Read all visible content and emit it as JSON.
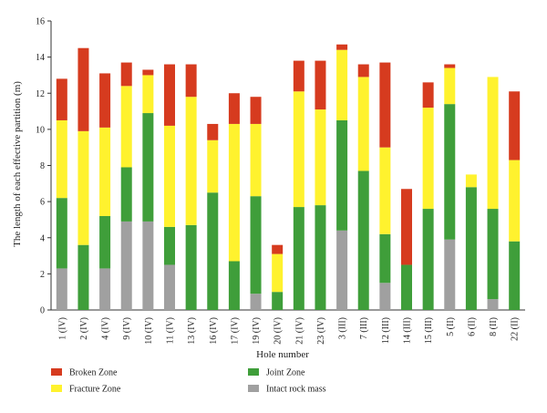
{
  "chart_data": {
    "type": "bar",
    "stacked": true,
    "xlabel": "Hole number",
    "ylabel": "The length of each effective partition (m)",
    "ylim": [
      0,
      16
    ],
    "yticks": [
      0,
      2,
      4,
      6,
      8,
      10,
      12,
      14,
      16
    ],
    "grid": false,
    "legend_position": "bottom",
    "categories": [
      "1 (IV)",
      "2 (IV)",
      "4 (IV)",
      "9 (IV)",
      "10 (IV)",
      "11 (IV)",
      "13 (IV)",
      "16 (IV)",
      "17 (IV)",
      "19 (IV)",
      "20 (IV)",
      "21 (IV)",
      "23 (IV)",
      "3 (III)",
      "7 (III)",
      "12 (III)",
      "14 (III)",
      "15 (III)",
      "5 (II)",
      "6 (II)",
      "8 (II)",
      "22 (II)"
    ],
    "series": [
      {
        "name": "Intact rock mass",
        "color": "#a0a0a0",
        "values": [
          2.3,
          0,
          2.3,
          4.9,
          4.9,
          2.5,
          0,
          0,
          0,
          0.9,
          0,
          0,
          0,
          4.4,
          0,
          1.5,
          0,
          0,
          3.9,
          0,
          0.6,
          0
        ]
      },
      {
        "name": "Joint Zone",
        "color": "#3f9e3a",
        "values": [
          3.9,
          3.6,
          2.9,
          3.0,
          6.0,
          2.1,
          4.7,
          6.5,
          2.7,
          5.4,
          1.0,
          5.7,
          5.8,
          6.1,
          7.7,
          2.7,
          2.5,
          5.6,
          7.5,
          6.8,
          5.0,
          3.8
        ]
      },
      {
        "name": "Fracture Zone",
        "color": "#fff22e",
        "values": [
          4.3,
          6.3,
          4.9,
          4.5,
          2.1,
          5.6,
          7.1,
          2.9,
          7.6,
          4.0,
          2.1,
          6.4,
          5.3,
          3.9,
          5.2,
          4.8,
          0,
          5.6,
          2.0,
          0.7,
          7.3,
          4.5
        ]
      },
      {
        "name": "Broken Zone",
        "color": "#d63b1f",
        "values": [
          2.3,
          4.6,
          3.0,
          1.3,
          0.3,
          3.4,
          1.8,
          0.9,
          1.7,
          1.5,
          0.5,
          1.7,
          2.7,
          0.3,
          0.7,
          4.7,
          4.2,
          1.4,
          0.2,
          0,
          0,
          3.8
        ]
      }
    ]
  },
  "legend": {
    "items": [
      {
        "label": "Broken Zone",
        "color": "#d63b1f"
      },
      {
        "label": "Fracture Zone",
        "color": "#fff22e"
      },
      {
        "label": "Joint Zone",
        "color": "#3f9e3a"
      },
      {
        "label": "Intact rock mass",
        "color": "#a0a0a0"
      }
    ]
  }
}
